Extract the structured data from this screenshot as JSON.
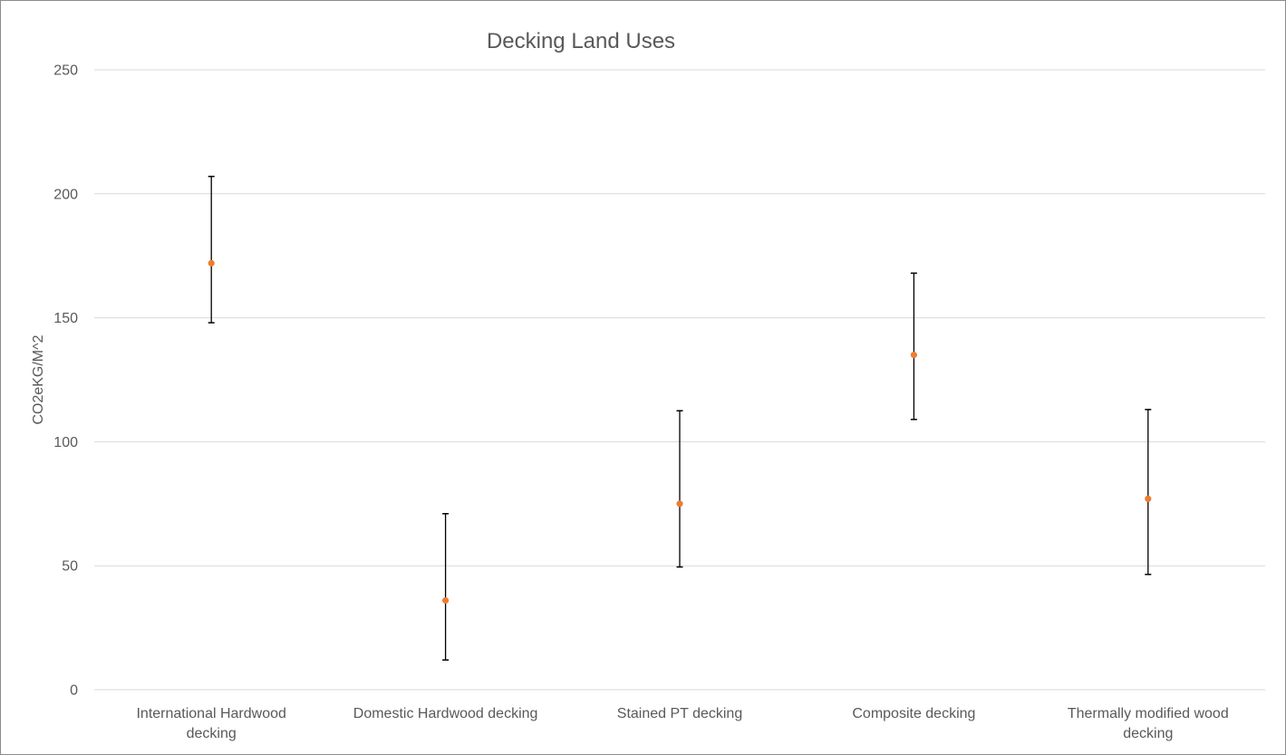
{
  "chart_data": {
    "type": "scatter",
    "title": "Decking Land Uses",
    "xlabel": "",
    "ylabel": "CO2eKG/M^2",
    "ylim": [
      0,
      250
    ],
    "yticks": [
      0,
      50,
      100,
      150,
      200,
      250
    ],
    "grid": true,
    "legend": "none",
    "point_color": "#ED7D31",
    "error_bar_color": "#000000",
    "categories": [
      "International Hardwood decking",
      "Domestic Hardwood decking",
      "Stained PT decking",
      "Composite decking",
      "Thermally modified wood decking"
    ],
    "series": [
      {
        "values": [
          172,
          36,
          75,
          135,
          77
        ],
        "error_low": [
          148,
          12,
          49.5,
          109,
          46.5
        ],
        "error_high": [
          207,
          71,
          112.5,
          168,
          113
        ]
      }
    ]
  }
}
